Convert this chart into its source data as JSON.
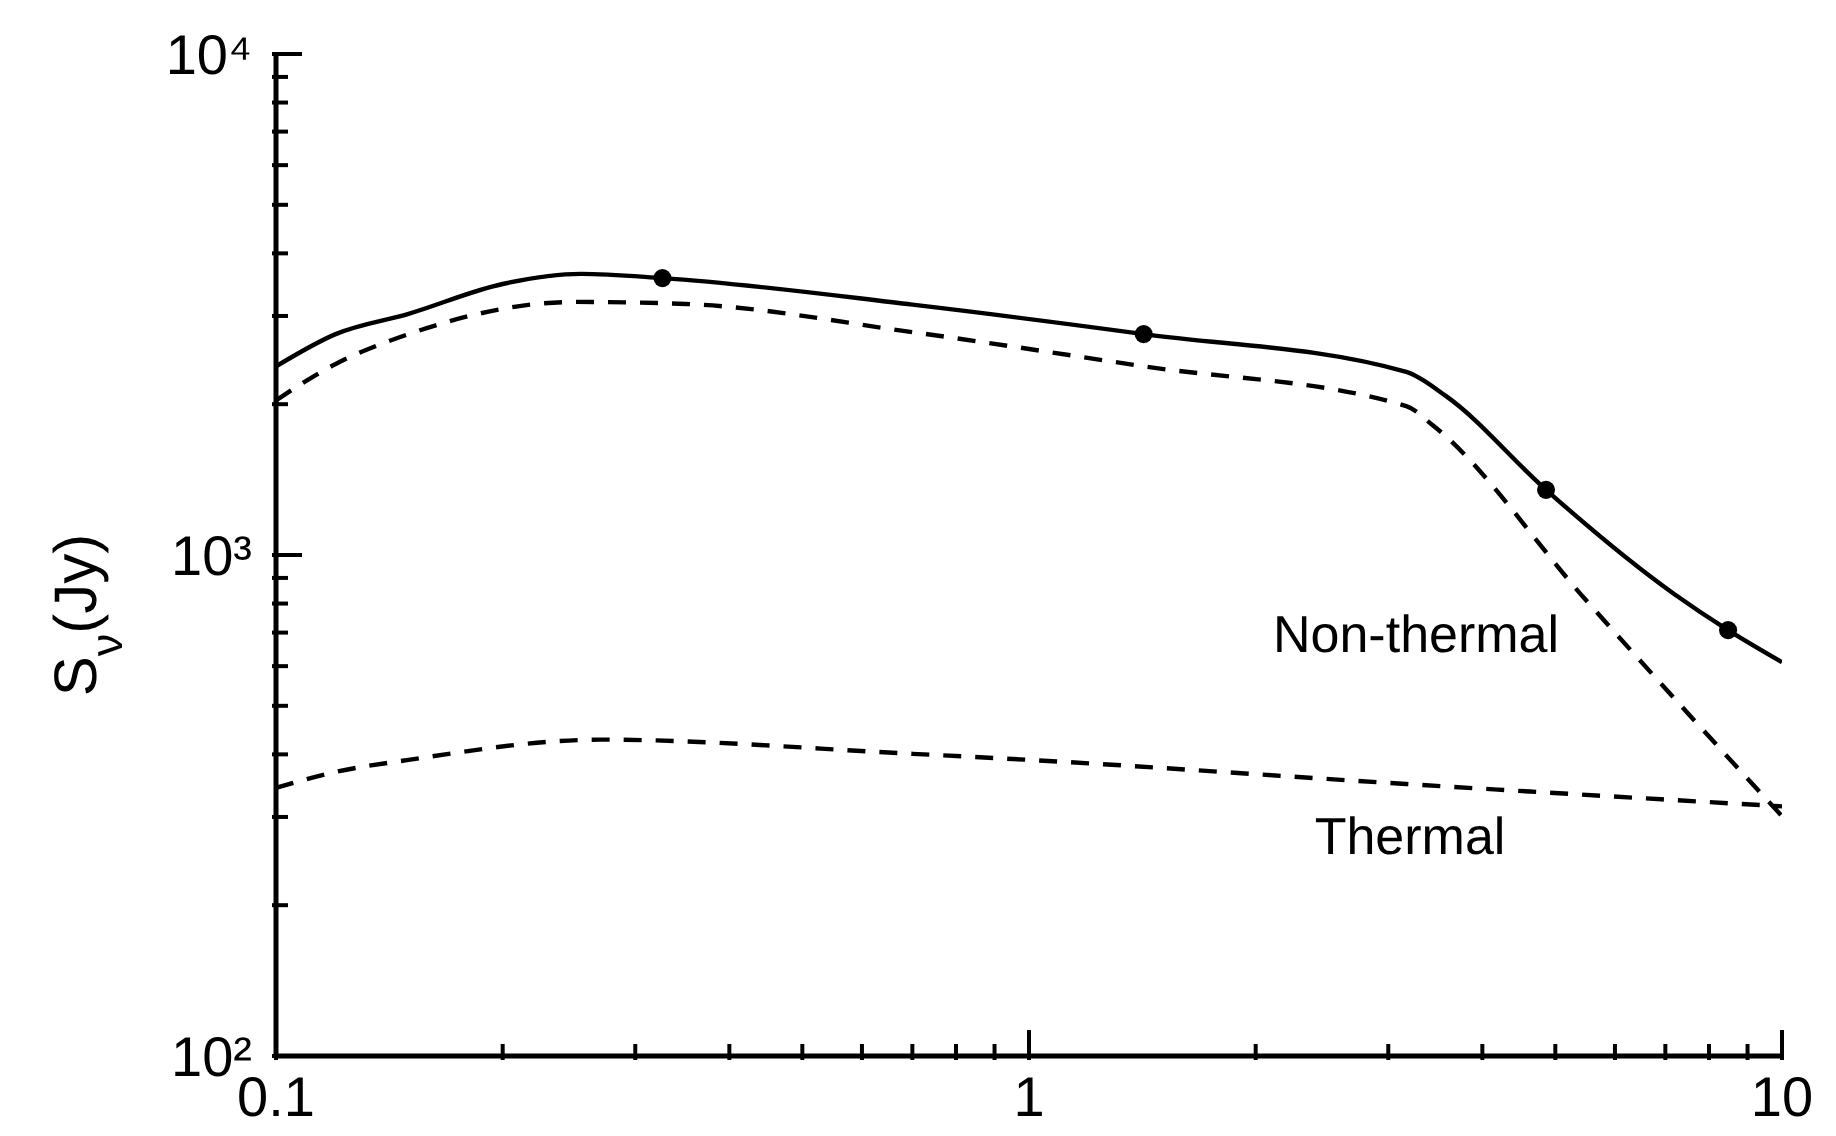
{
  "chart_data": {
    "type": "line",
    "ylabel": "S$_{ν}$(Jy)",
    "log": "xy",
    "xlim": [
      0.1,
      10
    ],
    "ylim": [
      100,
      10000
    ],
    "xticks": [
      "0.1",
      {
        "value": 0.2,
        "label": null
      },
      {
        "value": 0.3,
        "label": null
      },
      {
        "value": 0.4,
        "label": null
      },
      {
        "value": 0.5,
        "label": null
      },
      {
        "value": 0.6,
        "label": null
      },
      {
        "value": 0.7,
        "label": null
      },
      {
        "value": 0.8,
        "label": null
      },
      {
        "value": 0.9,
        "label": null
      },
      1,
      {
        "value": 2,
        "label": null
      },
      {
        "value": 3,
        "label": null
      },
      {
        "value": 4,
        "label": null
      },
      {
        "value": 5,
        "label": null
      },
      {
        "value": 6,
        "label": null
      },
      {
        "value": 7,
        "label": null
      },
      {
        "value": 8,
        "label": null
      },
      {
        "value": 9,
        "label": null
      },
      10
    ],
    "yticks": [
      {
        "value": 100,
        "label": "10²"
      },
      {
        "value": 200,
        "label": null
      },
      {
        "value": 300,
        "label": null
      },
      {
        "value": 400,
        "label": null
      },
      {
        "value": 500,
        "label": null
      },
      {
        "value": 600,
        "label": null
      },
      {
        "value": 700,
        "label": null
      },
      {
        "value": 800,
        "label": null
      },
      {
        "value": 900,
        "label": null
      },
      {
        "value": 1000,
        "label": "10³"
      },
      {
        "value": 2000,
        "label": null
      },
      {
        "value": 3000,
        "label": null
      },
      {
        "value": 4000,
        "label": null
      },
      {
        "value": 5000,
        "label": null
      },
      {
        "value": 6000,
        "label": null
      },
      {
        "value": 7000,
        "label": null
      },
      {
        "value": 8000,
        "label": null
      },
      {
        "value": 9000,
        "label": null
      },
      {
        "value": 10000,
        "label": "10⁴"
      }
    ],
    "series": [
      {
        "color": "#000000",
        "line_style": "solid",
        "marker": "none",
        "x": [
          0.1,
          0.12,
          0.15,
          0.2,
          0.254,
          0.326,
          0.7,
          1.42,
          3.17,
          3.58,
          4.86,
          7.19,
          8.48,
          10
        ],
        "values": [
          2380,
          2760,
          3030,
          3475,
          3640,
          3570,
          3160,
          2760,
          2320,
          2075,
          1349,
          836,
          708,
          611
        ]
      },
      {
        "name": "Non-thermal",
        "color": "#000000",
        "line_style": "dashed",
        "marker": "none",
        "x": [
          0.1,
          0.12,
          0.15,
          0.25,
          0.35,
          0.7,
          1.42,
          3.17,
          3.45,
          5.49,
          10
        ],
        "values": [
          2036,
          2405,
          2760,
          3200,
          3170,
          2785,
          2380,
          1983,
          1807,
          813,
          301
        ]
      },
      {
        "name": "Thermal",
        "color": "#000000",
        "line_style": "dashed",
        "marker": "none",
        "x": [
          0.1,
          0.12,
          0.15,
          0.27,
          0.7,
          1,
          3.17,
          10
        ],
        "values": [
          343,
          369,
          390,
          428,
          401,
          390,
          349,
          315
        ]
      },
      {
        "type": "scatter",
        "color": "#000000",
        "marker": "circle",
        "x": [
          0.326,
          1.42,
          4.86,
          8.48
        ],
        "values": [
          3570,
          2760,
          1349,
          708
        ]
      }
    ]
  }
}
